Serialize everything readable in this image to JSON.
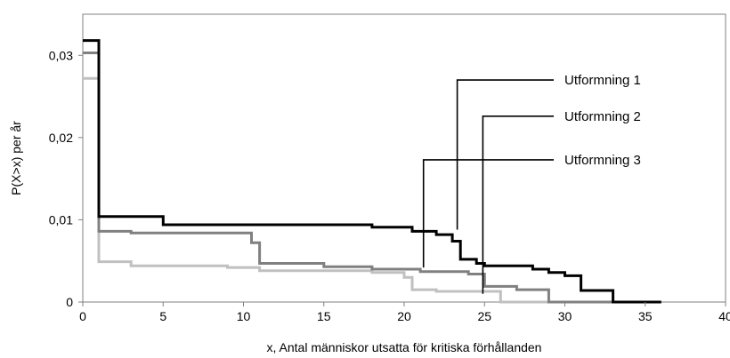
{
  "chart_data": {
    "type": "line",
    "step": true,
    "xlabel": "x, Antal människor utsatta för kritiska förhållanden",
    "ylabel": "P(X>x) per år",
    "xlim": [
      0,
      40
    ],
    "ylim": [
      0,
      0.035
    ],
    "xticks": [
      0,
      5,
      10,
      15,
      20,
      25,
      30,
      35,
      40
    ],
    "xtick_labels": [
      "0",
      "5",
      "10",
      "15",
      "20",
      "25",
      "30",
      "35",
      "40"
    ],
    "yticks": [
      0,
      0.01,
      0.02,
      0.03
    ],
    "ytick_labels": [
      "0",
      "0,01",
      "0,02",
      "0,03"
    ],
    "grid": false,
    "series": [
      {
        "name": "Utformning 3",
        "color": "#c0c0c0",
        "points": [
          [
            0,
            0.0272
          ],
          [
            1,
            0.0272
          ],
          [
            1,
            0.0049
          ],
          [
            3,
            0.0049
          ],
          [
            3,
            0.0044
          ],
          [
            9,
            0.0044
          ],
          [
            9,
            0.0042
          ],
          [
            11,
            0.0042
          ],
          [
            11,
            0.0038
          ],
          [
            18,
            0.0038
          ],
          [
            18,
            0.0036
          ],
          [
            20,
            0.0036
          ],
          [
            20,
            0.003
          ],
          [
            20.5,
            0.003
          ],
          [
            20.5,
            0.0015
          ],
          [
            22,
            0.0015
          ],
          [
            22,
            0.0013
          ],
          [
            26,
            0.0013
          ],
          [
            26,
            0
          ],
          [
            36,
            0
          ]
        ]
      },
      {
        "name": "Utformning 2",
        "color": "#808080",
        "points": [
          [
            0,
            0.0303
          ],
          [
            1,
            0.0303
          ],
          [
            1,
            0.0086
          ],
          [
            3,
            0.0086
          ],
          [
            3,
            0.0084
          ],
          [
            10.5,
            0.0084
          ],
          [
            10.5,
            0.0072
          ],
          [
            11,
            0.0072
          ],
          [
            11,
            0.0047
          ],
          [
            15,
            0.0047
          ],
          [
            15,
            0.0043
          ],
          [
            18,
            0.0043
          ],
          [
            18,
            0.004
          ],
          [
            21,
            0.004
          ],
          [
            21,
            0.0037
          ],
          [
            24,
            0.0037
          ],
          [
            24,
            0.0034
          ],
          [
            25,
            0.0034
          ],
          [
            25,
            0.0019
          ],
          [
            27,
            0.0019
          ],
          [
            27,
            0.0015
          ],
          [
            29,
            0.0015
          ],
          [
            29,
            0
          ],
          [
            34,
            0
          ]
        ]
      },
      {
        "name": "Utformning 1",
        "color": "#000000",
        "points": [
          [
            0,
            0.0318
          ],
          [
            1,
            0.0318
          ],
          [
            1,
            0.0104
          ],
          [
            5,
            0.0104
          ],
          [
            5,
            0.0094
          ],
          [
            18,
            0.0094
          ],
          [
            18,
            0.0091
          ],
          [
            20.5,
            0.0091
          ],
          [
            20.5,
            0.0086
          ],
          [
            22,
            0.0086
          ],
          [
            22,
            0.0082
          ],
          [
            23,
            0.0082
          ],
          [
            23,
            0.0074
          ],
          [
            23.5,
            0.0074
          ],
          [
            23.5,
            0.0052
          ],
          [
            24.5,
            0.0052
          ],
          [
            24.5,
            0.0047
          ],
          [
            25,
            0.0047
          ],
          [
            25,
            0.0044
          ],
          [
            28,
            0.0044
          ],
          [
            28,
            0.004
          ],
          [
            29,
            0.004
          ],
          [
            29,
            0.0036
          ],
          [
            30,
            0.0036
          ],
          [
            30,
            0.0032
          ],
          [
            31,
            0.0032
          ],
          [
            31,
            0.0014
          ],
          [
            33,
            0.0014
          ],
          [
            33,
            0
          ],
          [
            36,
            0
          ]
        ]
      }
    ],
    "annotations": [
      {
        "label": "Utformning 1",
        "anchor": [
          23.3,
          0.0088
        ],
        "knee": [
          23.3,
          0.027
        ]
      },
      {
        "label": "Utformning 2",
        "anchor": [
          24.9,
          0.001
        ],
        "knee": [
          24.9,
          0.0226
        ]
      },
      {
        "label": "Utformning 3",
        "anchor": [
          21.2,
          0.0042
        ],
        "knee": [
          21.2,
          0.0173
        ]
      }
    ]
  }
}
